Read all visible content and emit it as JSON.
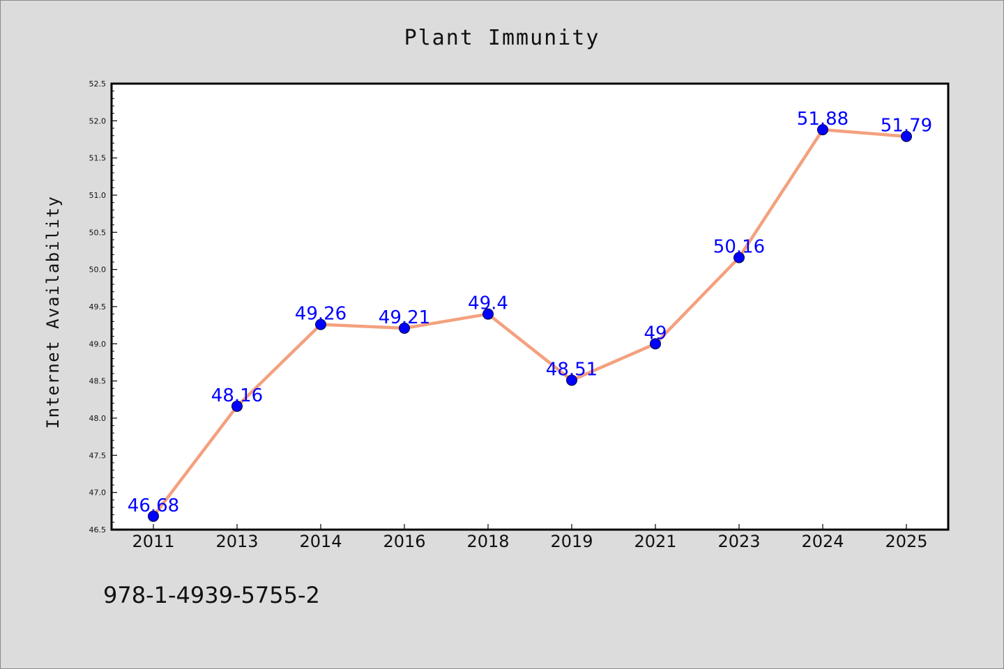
{
  "chart_data": {
    "type": "line",
    "title": "Plant Immunity",
    "xlabel": "",
    "ylabel": "Internet Availability",
    "categories": [
      "2011",
      "2013",
      "2014",
      "2016",
      "2018",
      "2019",
      "2021",
      "2023",
      "2024",
      "2025"
    ],
    "series": [
      {
        "values": [
          46.68,
          48.16,
          49.26,
          49.21,
          49.4,
          48.51,
          49,
          50.16,
          51.88,
          51.79
        ],
        "data_labels": [
          "46.68",
          "48.16",
          "49.26",
          "49.21",
          "49.4",
          "48.51",
          "49",
          "50.16",
          "51.88",
          "51.79"
        ]
      }
    ],
    "ylim": [
      46.5,
      52.5
    ],
    "yticks": [
      "46.5",
      "47.0",
      "47.5",
      "48.0",
      "48.5",
      "49.0",
      "49.5",
      "50.0",
      "50.5",
      "51.0",
      "51.5",
      "52.0",
      "52.5"
    ],
    "grid": false,
    "legend": "none",
    "line_color": "#f4a07e",
    "marker_color": "#0000ff",
    "label_color": "#0000ff",
    "plot_background": "#ffffff",
    "figure_background": "#dcdcdc"
  },
  "footer": {
    "text": "978-1-4939-5755-2"
  }
}
